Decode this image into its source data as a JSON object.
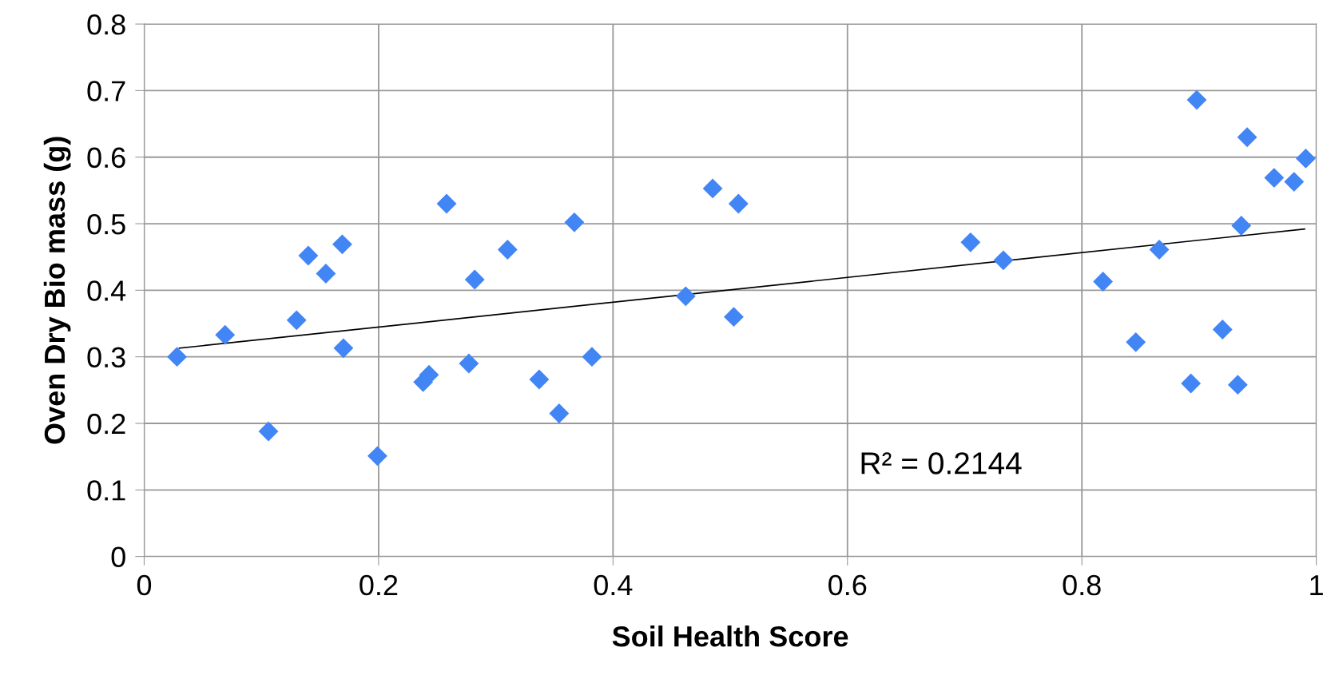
{
  "chart_data": {
    "type": "scatter",
    "xlabel": "Soil Health Score",
    "ylabel": "Oven Dry Bio mass (g)",
    "x": [
      0.028,
      0.069,
      0.106,
      0.13,
      0.14,
      0.155,
      0.169,
      0.17,
      0.199,
      0.238,
      0.243,
      0.258,
      0.277,
      0.282,
      0.31,
      0.337,
      0.354,
      0.367,
      0.382,
      0.462,
      0.485,
      0.507,
      0.503,
      0.705,
      0.733,
      0.818,
      0.846,
      0.866,
      0.893,
      0.898,
      0.92,
      0.933,
      0.936,
      0.941,
      0.964,
      0.981,
      0.991
    ],
    "series": [
      {
        "color": "#4285f4",
        "marker": "diamond",
        "values": [
          0.3,
          0.333,
          0.188,
          0.355,
          0.452,
          0.425,
          0.469,
          0.313,
          0.151,
          0.262,
          0.273,
          0.53,
          0.29,
          0.416,
          0.461,
          0.266,
          0.215,
          0.502,
          0.3,
          0.391,
          0.553,
          0.53,
          0.36,
          0.472,
          0.445,
          0.413,
          0.322,
          0.461,
          0.26,
          0.686,
          0.341,
          0.258,
          0.497,
          0.63,
          0.569,
          0.563,
          0.598
        ]
      },
      {
        "type": "line",
        "color": "#000000",
        "x": [
          0.03,
          0.99
        ],
        "values": [
          0.313,
          0.492
        ]
      }
    ],
    "annotations": [
      "R² = 0.2144"
    ],
    "xlim": [
      0,
      1
    ],
    "xticks": [
      0,
      0.2,
      0.4,
      0.6,
      0.8,
      1
    ],
    "ylim": [
      0,
      0.8
    ],
    "yticks": [
      0,
      0.1,
      0.2,
      0.3,
      0.4,
      0.5,
      0.6,
      0.7,
      0.8
    ],
    "grid": true,
    "legend": false
  }
}
